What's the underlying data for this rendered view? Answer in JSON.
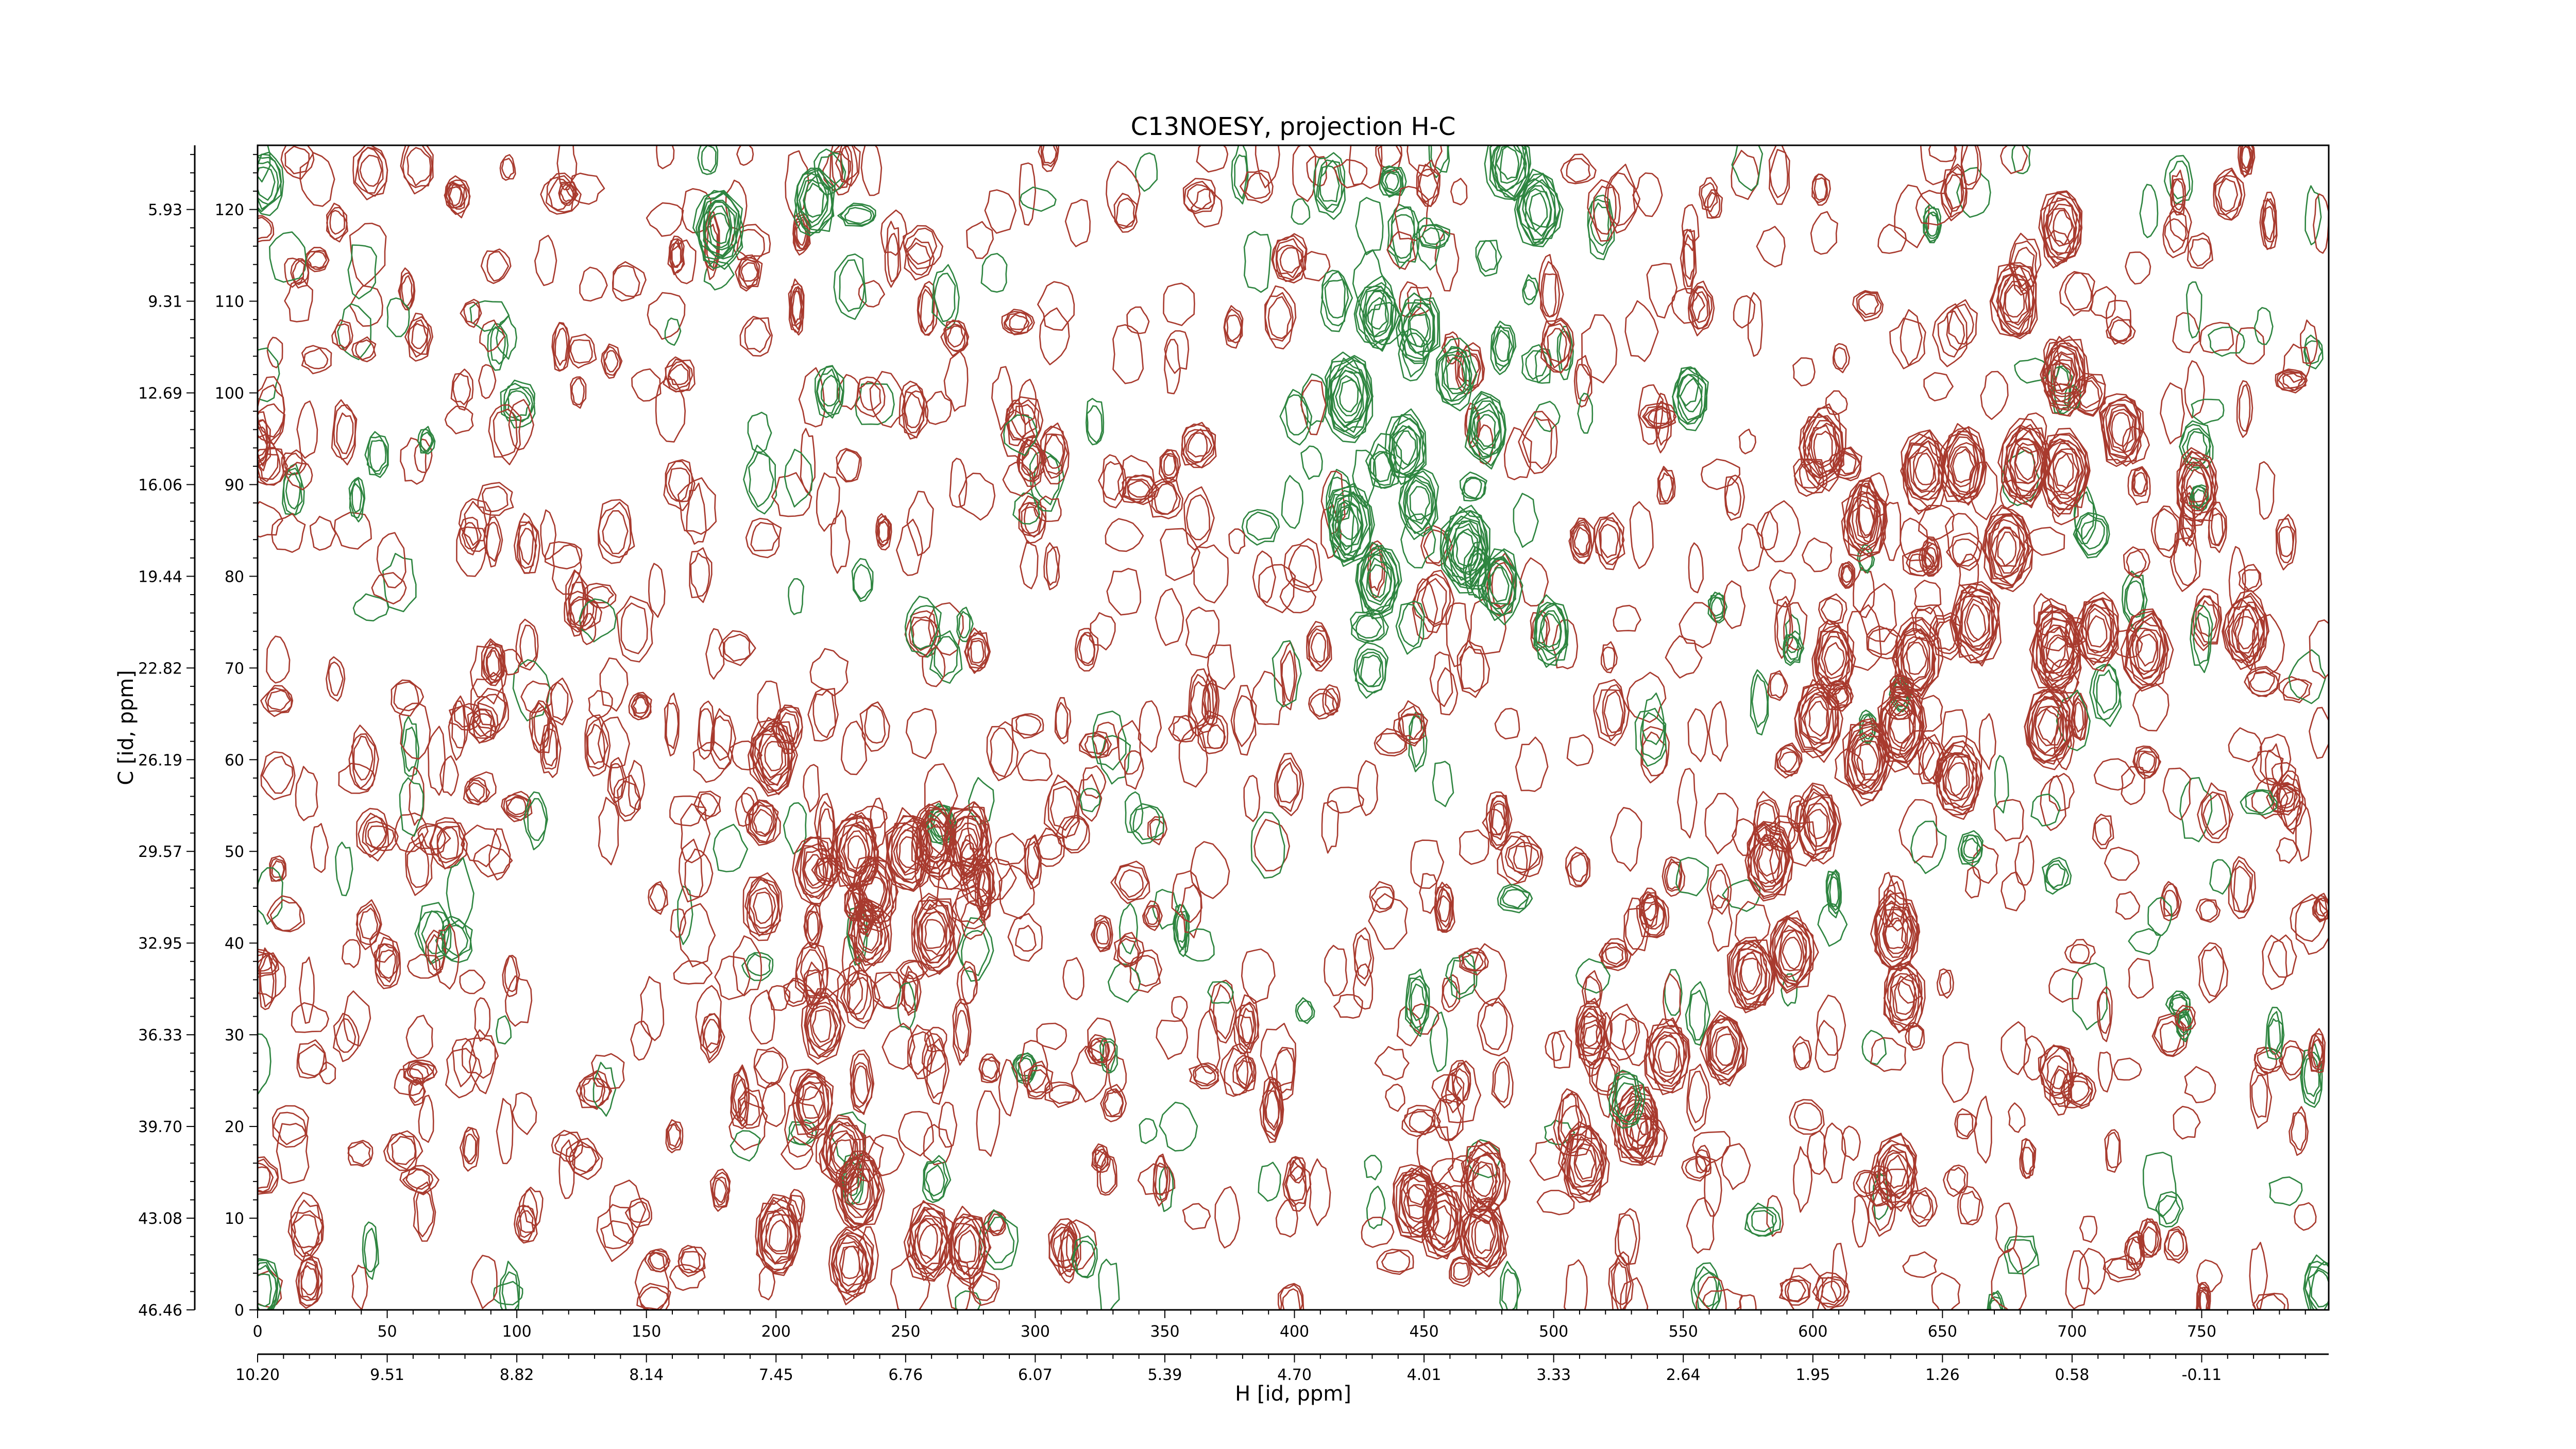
{
  "chart_data": {
    "type": "contour",
    "title": "C13NOESY, projection H-C",
    "xlabel": "H [id, ppm]",
    "ylabel": "C [id, ppm]",
    "xlim": [
      0,
      799
    ],
    "ylim": [
      0,
      127
    ],
    "x_ticks": [
      0,
      50,
      100,
      150,
      200,
      250,
      300,
      350,
      400,
      450,
      500,
      550,
      600,
      650,
      700,
      750
    ],
    "x_tick_labels": [
      "0",
      "50",
      "100",
      "150",
      "200",
      "250",
      "300",
      "350",
      "400",
      "450",
      "500",
      "550",
      "600",
      "650",
      "700",
      "750"
    ],
    "x_ppm_tick_labels": [
      "10.20",
      "9.51",
      "8.82",
      "8.14",
      "7.45",
      "6.76",
      "6.07",
      "5.39",
      "4.70",
      "4.01",
      "3.33",
      "2.64",
      "1.95",
      "1.26",
      "0.58",
      "-0.11"
    ],
    "y_ticks": [
      0,
      10,
      20,
      30,
      40,
      50,
      60,
      70,
      80,
      90,
      100,
      110,
      120
    ],
    "y_tick_labels": [
      "0",
      "10",
      "20",
      "30",
      "40",
      "50",
      "60",
      "70",
      "80",
      "90",
      "100",
      "110",
      "120"
    ],
    "y_ppm_tick_labels": [
      "46.46",
      "43.08",
      "39.70",
      "36.33",
      "32.95",
      "29.57",
      "26.19",
      "22.82",
      "19.44",
      "16.06",
      "12.69",
      "9.31",
      "5.93"
    ],
    "grid": false,
    "colors": {
      "positive": "#a83a2e",
      "negative": "#2e8540"
    },
    "peaks_positive": [
      [
        199,
        60.5,
        9
      ],
      [
        215,
        48,
        7
      ],
      [
        231,
        50,
        9
      ],
      [
        238,
        45.6,
        8
      ],
      [
        251,
        50,
        9
      ],
      [
        261,
        51,
        8
      ],
      [
        274,
        51,
        9
      ],
      [
        261,
        41,
        9
      ],
      [
        236,
        41,
        7
      ],
      [
        195,
        44,
        6
      ],
      [
        218,
        31,
        7
      ],
      [
        214,
        22.5,
        7
      ],
      [
        226,
        17,
        8
      ],
      [
        232,
        13,
        9
      ],
      [
        201,
        8,
        9
      ],
      [
        229,
        5,
        8
      ],
      [
        259,
        7.4,
        9
      ],
      [
        274,
        6.8,
        8
      ],
      [
        447,
        11.7,
        9
      ],
      [
        457,
        9.5,
        8
      ],
      [
        473,
        14,
        9
      ],
      [
        473,
        8,
        9
      ],
      [
        512,
        16,
        9
      ],
      [
        532,
        20,
        9
      ],
      [
        544,
        27.6,
        8
      ],
      [
        566,
        28.5,
        8
      ],
      [
        576,
        36.6,
        9
      ],
      [
        592,
        39,
        9
      ],
      [
        583,
        49,
        9
      ],
      [
        602,
        53,
        8
      ],
      [
        621,
        60,
        10
      ],
      [
        634,
        63.6,
        10
      ],
      [
        656,
        58,
        9
      ],
      [
        602,
        64.5,
        9
      ],
      [
        632,
        41,
        9
      ],
      [
        608,
        71,
        8
      ],
      [
        640,
        71,
        9
      ],
      [
        663,
        75,
        10
      ],
      [
        675,
        83,
        10
      ],
      [
        694,
        72,
        11
      ],
      [
        710,
        74,
        8
      ],
      [
        729,
        72,
        9
      ],
      [
        767,
        74,
        8
      ],
      [
        604,
        94,
        9
      ],
      [
        620,
        86,
        9
      ],
      [
        643,
        91.5,
        9
      ],
      [
        658,
        92,
        9
      ],
      [
        682,
        92.4,
        10
      ],
      [
        697,
        91.5,
        10
      ],
      [
        719,
        96,
        8
      ],
      [
        748,
        89.7,
        8
      ],
      [
        678,
        110,
        9
      ],
      [
        697,
        102,
        9
      ],
      [
        696,
        118,
        8
      ],
      [
        691,
        63.6,
        10
      ],
      [
        632,
        15,
        8
      ],
      [
        635,
        34,
        7
      ]
    ],
    "peaks_negative": [
      [
        178,
        118,
        9
      ],
      [
        215,
        121,
        7
      ],
      [
        483,
        125,
        8
      ],
      [
        494,
        120,
        8
      ],
      [
        421,
        99.6,
        10
      ],
      [
        432,
        108.6,
        7
      ],
      [
        448,
        107,
        7
      ],
      [
        443,
        94,
        7
      ],
      [
        466,
        83,
        10
      ],
      [
        421,
        85.6,
        9
      ],
      [
        432,
        79.5,
        8
      ],
      [
        462,
        102,
        6
      ],
      [
        474,
        96,
        7
      ],
      [
        448,
        88,
        6
      ],
      [
        499,
        74,
        6
      ],
      [
        479,
        79,
        7
      ],
      [
        553,
        99.6,
        5
      ],
      [
        528,
        23,
        4
      ],
      [
        3,
        123,
        5
      ],
      [
        2,
        2.3,
        5
      ],
      [
        796,
        2.3,
        5
      ]
    ]
  }
}
